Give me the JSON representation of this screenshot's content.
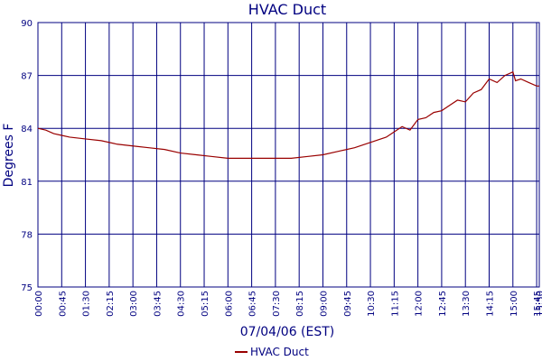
{
  "chart_data": {
    "type": "line",
    "title": "HVAC Duct",
    "x_label": "07/04/06 (EST)",
    "y_label": "Degrees F",
    "x": [
      0,
      15,
      30,
      45,
      60,
      90,
      120,
      150,
      180,
      210,
      240,
      270,
      300,
      330,
      360,
      390,
      420,
      450,
      480,
      510,
      540,
      570,
      600,
      630,
      660,
      675,
      690,
      705,
      720,
      735,
      750,
      765,
      780,
      795,
      810,
      825,
      840,
      855,
      870,
      885,
      900,
      905,
      915,
      930,
      945,
      950
    ],
    "series": [
      {
        "name": "HVAC Duct",
        "color": "#990000",
        "values": [
          84.0,
          83.9,
          83.7,
          83.6,
          83.5,
          83.4,
          83.3,
          83.1,
          83.0,
          82.9,
          82.8,
          82.6,
          82.5,
          82.4,
          82.3,
          82.3,
          82.3,
          82.3,
          82.3,
          82.4,
          82.5,
          82.7,
          82.9,
          83.2,
          83.5,
          83.8,
          84.1,
          83.9,
          84.5,
          84.6,
          84.9,
          85.0,
          85.3,
          85.6,
          85.5,
          86.0,
          86.2,
          86.8,
          86.6,
          87.0,
          87.2,
          86.7,
          86.8,
          86.6,
          86.4,
          86.4
        ]
      }
    ],
    "xlim": [
      0,
      950
    ],
    "xticks": [
      {
        "value": 0,
        "label": "00:00"
      },
      {
        "value": 45,
        "label": "00:45"
      },
      {
        "value": 90,
        "label": "01:30"
      },
      {
        "value": 135,
        "label": "02:15"
      },
      {
        "value": 180,
        "label": "03:00"
      },
      {
        "value": 225,
        "label": "03:45"
      },
      {
        "value": 270,
        "label": "04:30"
      },
      {
        "value": 315,
        "label": "05:15"
      },
      {
        "value": 360,
        "label": "06:00"
      },
      {
        "value": 405,
        "label": "06:45"
      },
      {
        "value": 450,
        "label": "07:30"
      },
      {
        "value": 495,
        "label": "08:15"
      },
      {
        "value": 540,
        "label": "09:00"
      },
      {
        "value": 585,
        "label": "09:45"
      },
      {
        "value": 630,
        "label": "10:30"
      },
      {
        "value": 675,
        "label": "11:15"
      },
      {
        "value": 720,
        "label": "12:00"
      },
      {
        "value": 765,
        "label": "12:45"
      },
      {
        "value": 810,
        "label": "13:30"
      },
      {
        "value": 855,
        "label": "14:15"
      },
      {
        "value": 900,
        "label": "15:00"
      },
      {
        "value": 945,
        "label": "15:45"
      },
      {
        "value": 950,
        "label": "15:50"
      }
    ],
    "ylim": [
      75,
      90
    ],
    "yticks": [
      75,
      78,
      81,
      84,
      87,
      90
    ],
    "grid": true,
    "grid_color": "#000080",
    "legend": "bottom"
  }
}
